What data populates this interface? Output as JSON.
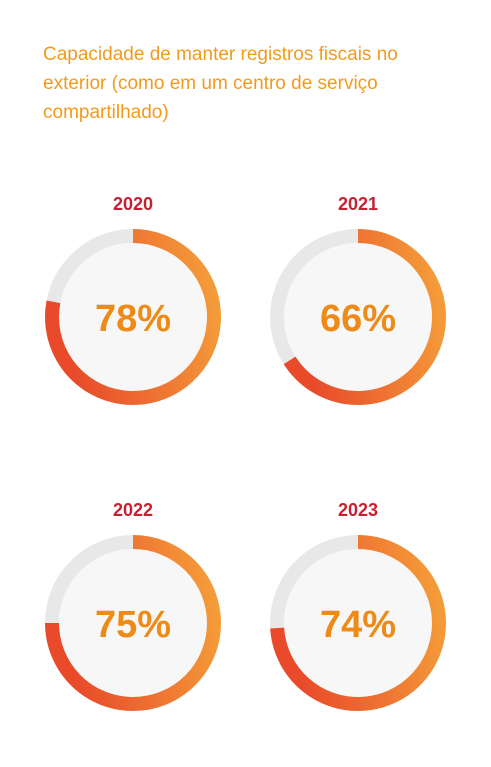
{
  "title": "Capacidade de manter registros fiscais no exterior (como em um centro de serviço compartilhado)",
  "colors": {
    "title": "#f29a1c",
    "year": "#c8202f",
    "value": "#ee8a18",
    "track": "#e8e8e8",
    "inner": "#f7f7f7",
    "arc_start": "#f5a13a",
    "arc_end": "#e84a2a"
  },
  "chart_data": {
    "type": "donut-gauge",
    "items": [
      {
        "year": "2020",
        "value": 78,
        "label": "78%"
      },
      {
        "year": "2021",
        "value": 66,
        "label": "66%"
      },
      {
        "year": "2022",
        "value": 75,
        "label": "75%"
      },
      {
        "year": "2023",
        "value": 74,
        "label": "74%"
      }
    ]
  }
}
